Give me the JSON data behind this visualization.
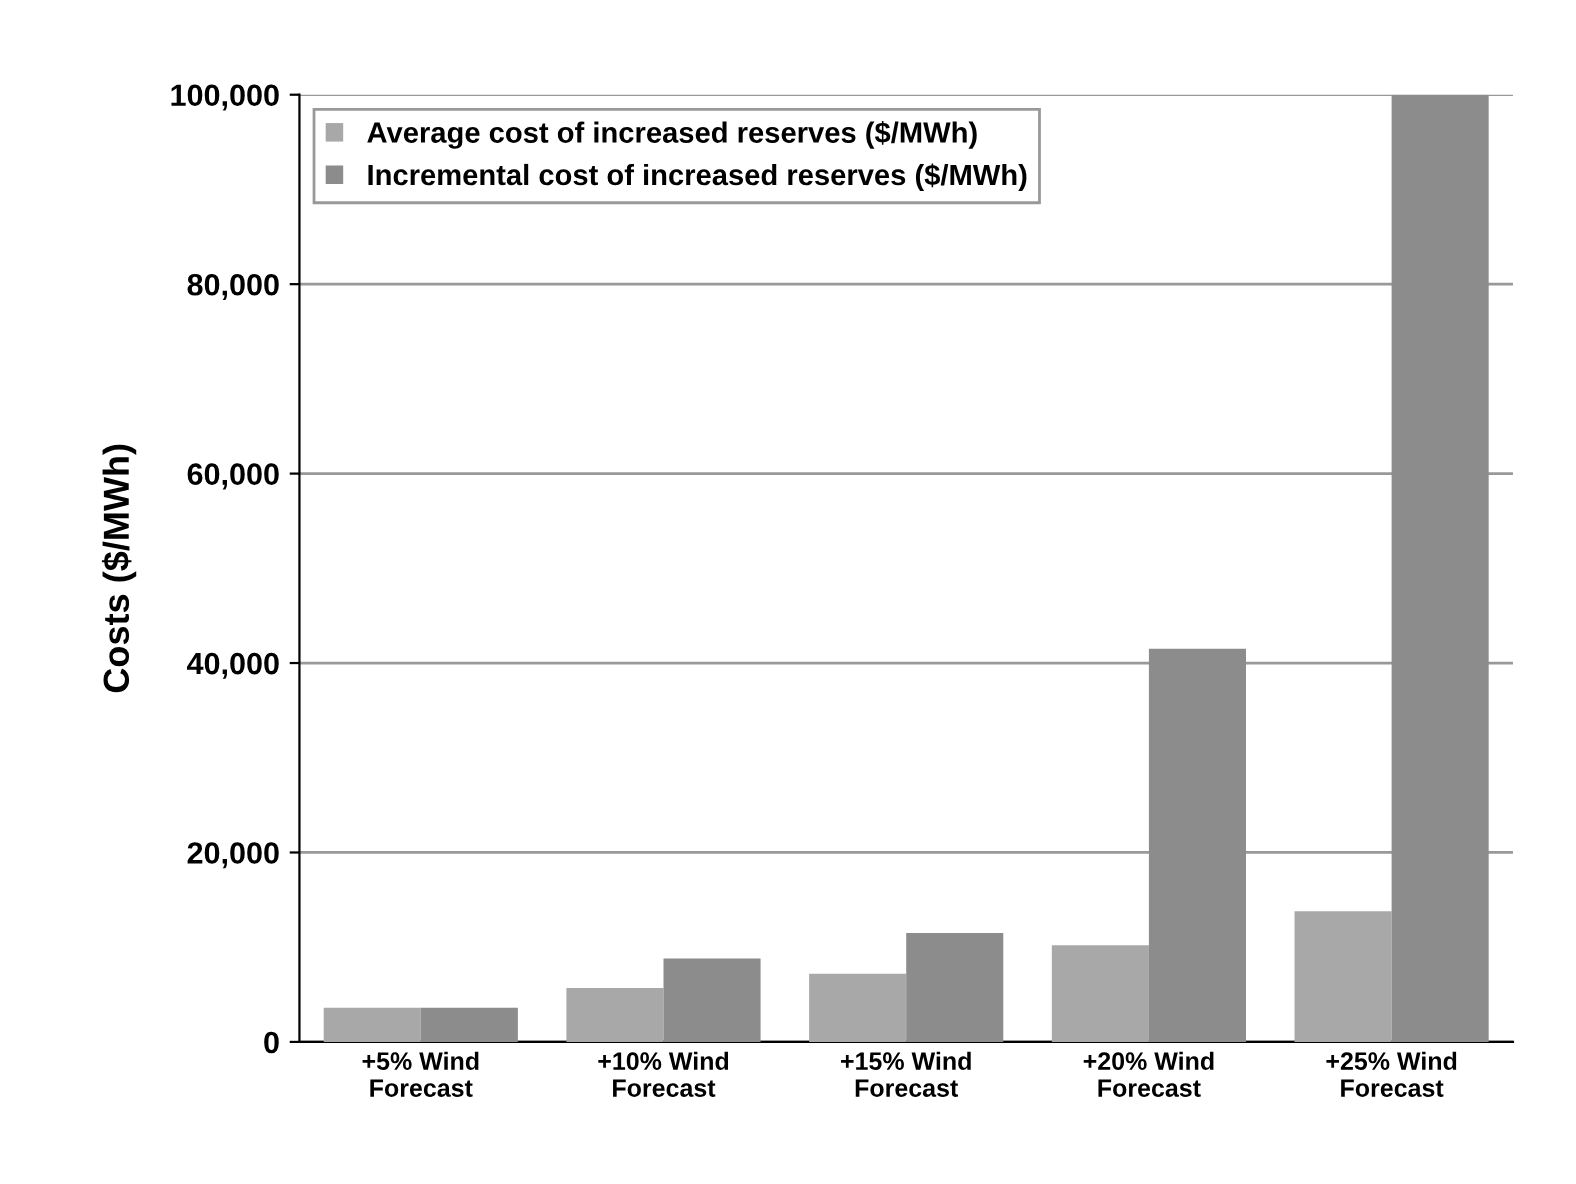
{
  "chart_data": {
    "type": "bar",
    "ylabel": "Costs ($/MWh)",
    "categories": [
      "+5% Wind\nForecast",
      "+10% Wind\nForecast",
      "+15% Wind\nForecast",
      "+20% Wind\nForecast",
      "+25% Wind\nForecast"
    ],
    "series": [
      {
        "name": "Average cost of increased reserves ($/MWh)",
        "color": "#a8a8a8",
        "values": [
          3600,
          5700,
          7200,
          10200,
          13800
        ]
      },
      {
        "name": "Incremental cost of increased reserves ($/MWh)",
        "color": "#8c8c8c",
        "values": [
          3600,
          8800,
          11500,
          41500,
          100000
        ]
      }
    ],
    "ylim": [
      0,
      100000
    ],
    "yticks": [
      {
        "value": 0,
        "label": "0"
      },
      {
        "value": 20000,
        "label": "20,000"
      },
      {
        "value": 40000,
        "label": "40,000"
      },
      {
        "value": 60000,
        "label": "60,000"
      },
      {
        "value": 80000,
        "label": "80,000"
      },
      {
        "value": 100000,
        "label": "100,000"
      }
    ],
    "grid": "y",
    "legend": "top left"
  }
}
